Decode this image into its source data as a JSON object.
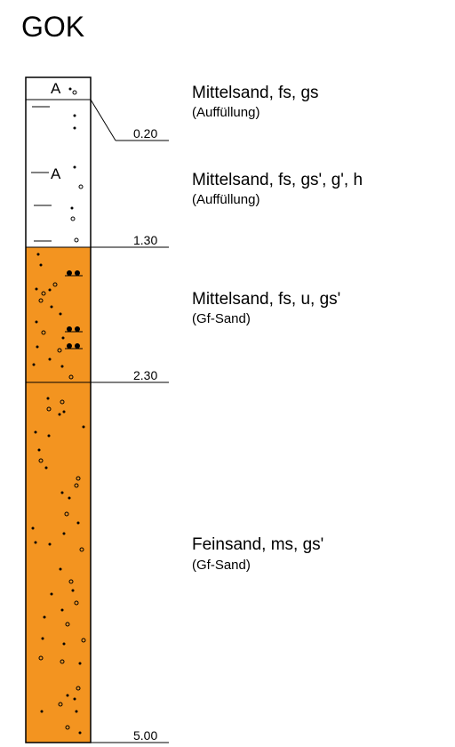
{
  "title": "GOK",
  "colors": {
    "fill": "#f39420",
    "fill_top": "#ffffff",
    "line": "#000000"
  },
  "chart_data": {
    "type": "borehole_log",
    "depth_range": [
      0,
      5.0
    ],
    "depth_labels": [
      "0.20",
      "1.30",
      "2.30",
      "5.00"
    ],
    "layers": [
      {
        "top": 0.0,
        "bottom": 0.2,
        "color": "#ffffff",
        "symbols": [
          "A"
        ],
        "description": "Mittelsand, fs, gs",
        "origin": "(Auffüllung)"
      },
      {
        "top": 0.2,
        "bottom": 1.3,
        "color": "#ffffff",
        "symbols": [
          "A"
        ],
        "description": "Mittelsand, fs, gs', g', h",
        "origin": "(Auffüllung)"
      },
      {
        "top": 1.3,
        "bottom": 2.3,
        "color": "#f39420",
        "symbols": [],
        "description": "Mittelsand, fs, u, gs'",
        "origin": "(Gf-Sand)"
      },
      {
        "top": 2.3,
        "bottom": 5.0,
        "color": "#f39420",
        "symbols": [],
        "description": "Feinsand, ms, gs'",
        "origin": "(Gf-Sand)"
      }
    ]
  }
}
